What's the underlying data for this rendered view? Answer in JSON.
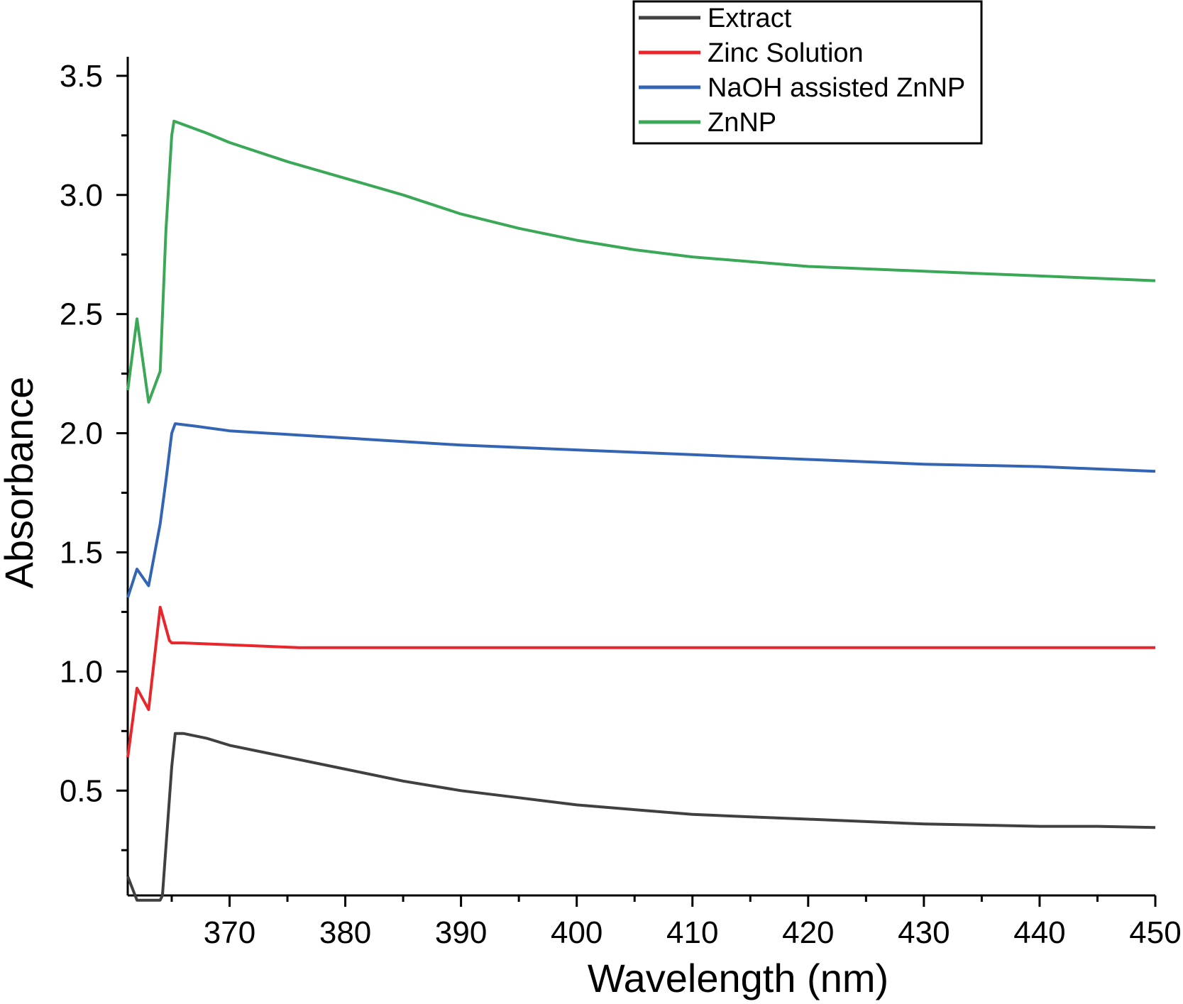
{
  "chart_data": {
    "type": "line",
    "xlabel": "Wavelength (nm)",
    "ylabel": "Absorbance",
    "xlim": [
      361.2,
      450
    ],
    "ylim": [
      0.06,
      3.58
    ],
    "xticks": [
      370,
      380,
      390,
      400,
      410,
      420,
      430,
      440,
      450
    ],
    "xtick_labels": [
      "370",
      "380",
      "390",
      "400",
      "410",
      "420",
      "430",
      "440",
      "450"
    ],
    "yticks": [
      0.5,
      1.0,
      1.5,
      2.0,
      2.5,
      3.0,
      3.5
    ],
    "ytick_labels": [
      "0.5",
      "1.0",
      "1.5",
      "2.0",
      "2.5",
      "3.0",
      "3.5"
    ],
    "grid": false,
    "legend_position": "top-right",
    "series": [
      {
        "name": "Extract",
        "color": "#404040",
        "x": [
          361.2,
          362,
          364,
          364.2,
          365,
          365.3,
          366,
          368,
          370,
          375,
          380,
          385,
          390,
          395,
          400,
          405,
          410,
          415,
          420,
          425,
          430,
          435,
          440,
          445,
          450
        ],
        "y": [
          0.14,
          0.04,
          0.04,
          0.06,
          0.6,
          0.74,
          0.74,
          0.72,
          0.69,
          0.64,
          0.59,
          0.54,
          0.5,
          0.47,
          0.44,
          0.42,
          0.4,
          0.39,
          0.38,
          0.37,
          0.36,
          0.355,
          0.35,
          0.35,
          0.345
        ]
      },
      {
        "name": "Zinc Solution",
        "color": "#e8262b",
        "x": [
          361.2,
          362,
          363,
          364,
          364.8,
          365,
          366,
          376,
          450
        ],
        "y": [
          0.64,
          0.93,
          0.84,
          1.27,
          1.13,
          1.12,
          1.12,
          1.1,
          1.1
        ],
        "legend_label": "Zinc Solution"
      },
      {
        "name": "NaOH assisted ZnNP",
        "color": "#3465b4",
        "x": [
          361.2,
          362,
          363,
          364,
          364.5,
          365,
          365.3,
          367,
          370,
          380,
          390,
          400,
          410,
          420,
          430,
          440,
          450
        ],
        "y": [
          1.31,
          1.43,
          1.36,
          1.62,
          1.8,
          2.0,
          2.04,
          2.03,
          2.01,
          1.98,
          1.95,
          1.93,
          1.91,
          1.89,
          1.87,
          1.86,
          1.84
        ]
      },
      {
        "name": "ZnNP",
        "color": "#3aa856",
        "x": [
          361.2,
          362,
          363,
          364,
          364.5,
          365,
          365.2,
          368,
          370,
          375,
          380,
          385,
          390,
          395,
          400,
          405,
          410,
          415,
          420,
          425,
          430,
          435,
          440,
          445,
          450
        ],
        "y": [
          2.18,
          2.48,
          2.13,
          2.26,
          2.85,
          3.25,
          3.31,
          3.26,
          3.22,
          3.14,
          3.07,
          3.0,
          2.92,
          2.86,
          2.81,
          2.77,
          2.74,
          2.72,
          2.7,
          2.69,
          2.68,
          2.67,
          2.66,
          2.65,
          2.64
        ]
      }
    ]
  }
}
